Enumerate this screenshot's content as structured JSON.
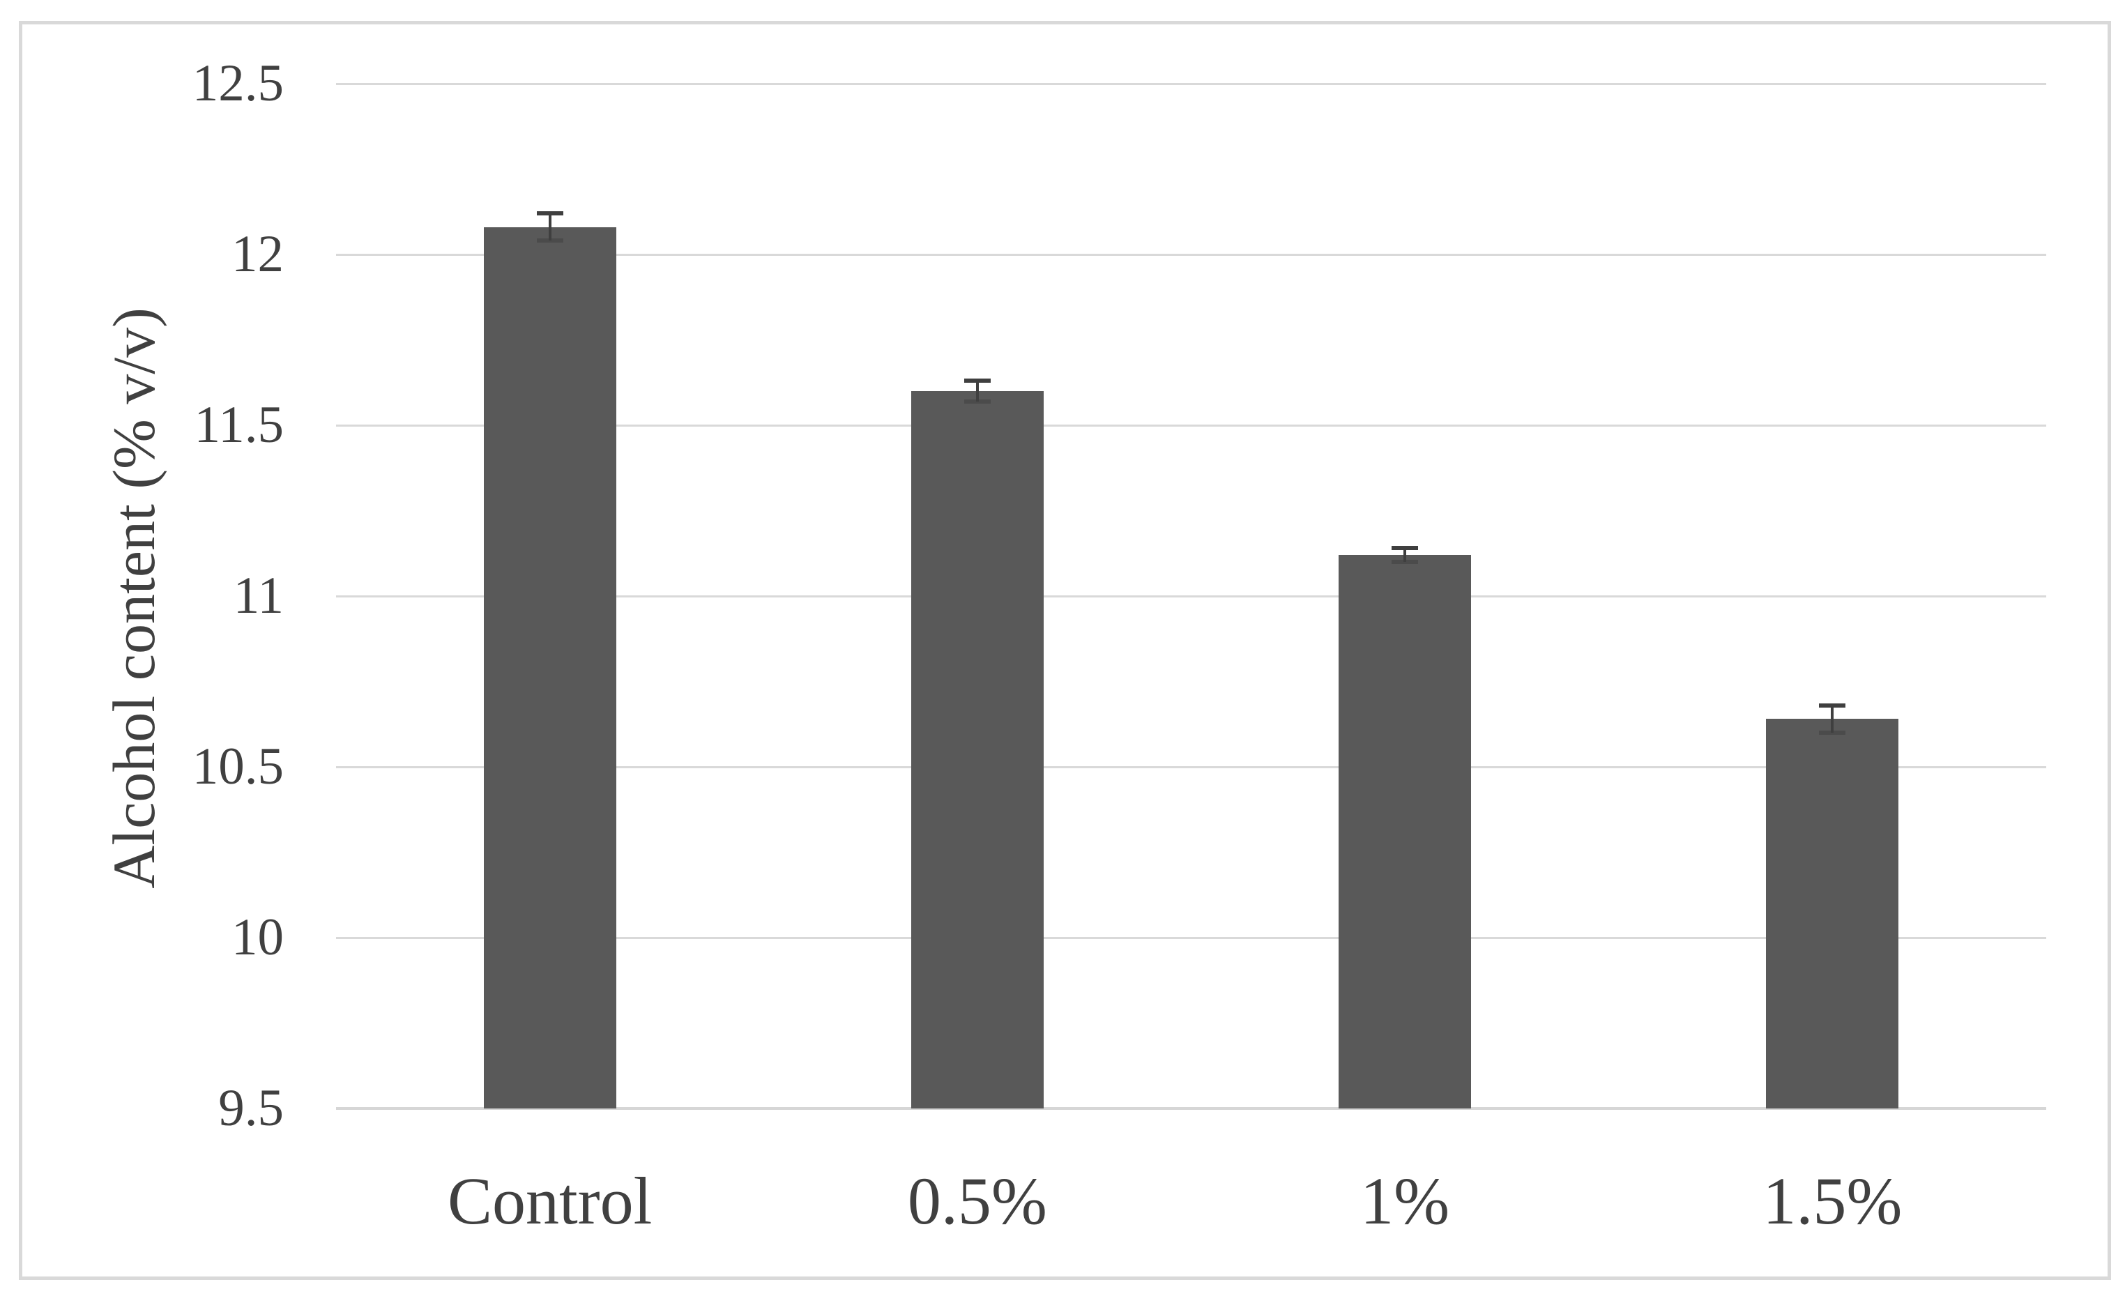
{
  "chart_data": {
    "type": "bar",
    "title": "",
    "categories": [
      "Control",
      "0.5%",
      "1%",
      "1.5%"
    ],
    "values": [
      12.08,
      11.6,
      11.12,
      10.64
    ],
    "error_bars": [
      0.04,
      0.03,
      0.02,
      0.04
    ],
    "xlabel": "",
    "ylabel": "Alcohol content (% v/v)",
    "ylim": [
      9.5,
      12.5
    ],
    "ytick_step": 0.5,
    "ytick_labels": [
      "12.5",
      "12",
      "11.5",
      "11",
      "10.5",
      "10",
      "9.5"
    ],
    "grid": true,
    "legend_position": "none",
    "colors": {
      "bar_fill": "#595959",
      "error_bar": "#3f3f3f",
      "gridline": "#d9d9d9",
      "axis_line": "#d6d6d6",
      "text": "#404040",
      "frame_border": "#d9d9d9",
      "background": "#ffffff"
    }
  }
}
